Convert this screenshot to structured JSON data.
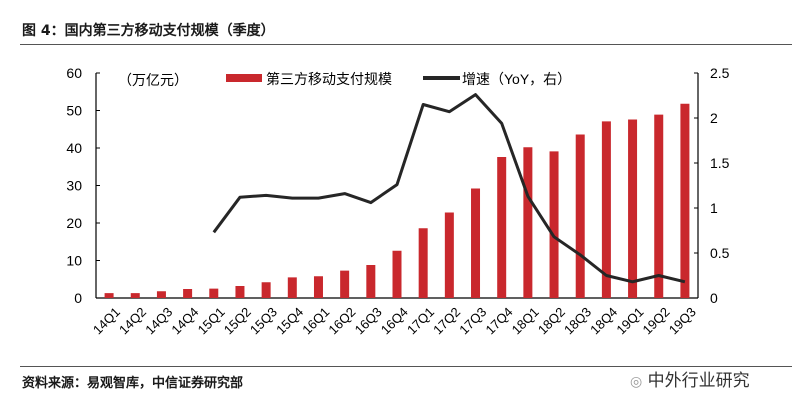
{
  "title": "图 4：国内第三方移动支付规模（季度）",
  "source": "资料来源：易观智库，中信证券研究部",
  "watermark": "中外行业研究",
  "colors": {
    "bar": "#c9282d",
    "line": "#262626"
  },
  "chart_data": {
    "type": "bar+line",
    "unit_label": "（万亿元）",
    "categories": [
      "14Q1",
      "14Q2",
      "14Q3",
      "14Q4",
      "15Q1",
      "15Q2",
      "15Q3",
      "15Q4",
      "16Q1",
      "16Q2",
      "16Q3",
      "16Q4",
      "17Q1",
      "17Q2",
      "17Q3",
      "17Q4",
      "18Q1",
      "18Q2",
      "18Q3",
      "18Q4",
      "19Q1",
      "19Q2",
      "19Q3"
    ],
    "series": [
      {
        "name": "第三方移动支付规模",
        "type": "bar",
        "axis": "left",
        "values": [
          1.3,
          1.3,
          1.8,
          2.4,
          2.5,
          3.2,
          4.2,
          5.5,
          5.8,
          7.3,
          8.8,
          12.6,
          18.6,
          22.8,
          29.2,
          37.6,
          40.2,
          39.1,
          43.6,
          47.1,
          47.6,
          48.9,
          51.8
        ]
      },
      {
        "name": "增速（YoY，右）",
        "type": "line",
        "axis": "right",
        "values": [
          null,
          null,
          null,
          null,
          0.73,
          1.12,
          1.14,
          1.11,
          1.11,
          1.16,
          1.06,
          1.26,
          2.15,
          2.07,
          2.26,
          1.94,
          1.13,
          0.68,
          0.48,
          0.25,
          0.18,
          0.25,
          0.18
        ]
      }
    ],
    "ylim_left": [
      0,
      60
    ],
    "yticks_left": [
      "0",
      "10",
      "20",
      "30",
      "40",
      "50",
      "60"
    ],
    "ylim_right": [
      0,
      2.5
    ],
    "yticks_right": [
      "0",
      "0.5",
      "1",
      "1.5",
      "2",
      "2.5"
    ],
    "grid": false,
    "legend": "top"
  }
}
